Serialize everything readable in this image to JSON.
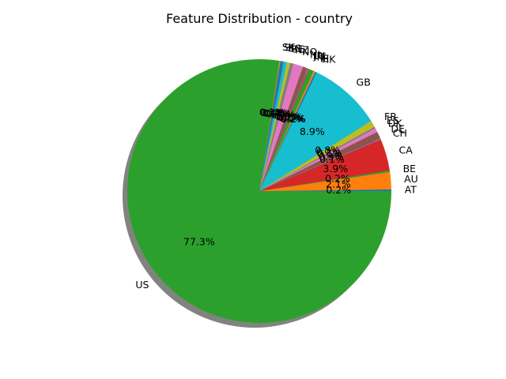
{
  "chart_data": {
    "type": "pie",
    "title": "Feature Distribution - country",
    "shadow": true,
    "start_angle_deg": 0,
    "direction": "counterclockwise",
    "slices": [
      {
        "label": "AT",
        "value": 0.2,
        "pct_text": "0.2%",
        "color": "#1f77b4"
      },
      {
        "label": "AU",
        "value": 2.1,
        "pct_text": "2.1%",
        "color": "#ff7f0e"
      },
      {
        "label": "BE",
        "value": 0.2,
        "pct_text": "0.2%",
        "color": "#2ca02c"
      },
      {
        "label": "CA",
        "value": 3.9,
        "pct_text": "3.9%",
        "color": "#d62728"
      },
      {
        "label": "CH",
        "value": 0.1,
        "pct_text": "0.1%",
        "color": "#9467bd"
      },
      {
        "label": "DE",
        "value": 0.9,
        "pct_text": "0.9%",
        "color": "#8c564b"
      },
      {
        "label": "DK",
        "value": 0.5,
        "pct_text": "0.5%",
        "color": "#e377c2"
      },
      {
        "label": "ES",
        "value": 0.2,
        "pct_text": "0.2%",
        "color": "#7f7f7f"
      },
      {
        "label": "FR",
        "value": 0.8,
        "pct_text": "0.8%",
        "color": "#bcbd22"
      },
      {
        "label": "GB",
        "value": 8.9,
        "pct_text": "8.9%",
        "color": "#17becf"
      },
      {
        "label": "HK",
        "value": 0.2,
        "pct_text": "0.2%",
        "color": "#1f77b4"
      },
      {
        "label": "IE",
        "value": 0.2,
        "pct_text": "0.2%",
        "color": "#ff7f0e"
      },
      {
        "label": "IT",
        "value": 0.6,
        "pct_text": "0.6%",
        "color": "#2ca02c"
      },
      {
        "label": "JP",
        "value": 0.1,
        "pct_text": "0.1%",
        "color": "#d62728"
      },
      {
        "label": "LU",
        "value": 0.1,
        "pct_text": "0.1%",
        "color": "#9467bd"
      },
      {
        "label": "NL",
        "value": 0.6,
        "pct_text": "0.6%",
        "color": "#8c564b"
      },
      {
        "label": "NO",
        "value": 1.2,
        "pct_text": "1.2%",
        "color": "#e377c2"
      },
      {
        "label": "NZ",
        "value": 0.4,
        "pct_text": "0.4%",
        "color": "#7f7f7f"
      },
      {
        "label": "SE",
        "value": 0.4,
        "pct_text": "0.4%",
        "color": "#bcbd22"
      },
      {
        "label": "SG",
        "value": 0.4,
        "pct_text": "0.4%",
        "color": "#17becf"
      },
      {
        "label": "SI",
        "value": 0.4,
        "pct_text": "0.4%",
        "color": "#1f77b4"
      },
      {
        "label": "SK",
        "value": 0.1,
        "pct_text": "0.1%",
        "color": "#ff7f0e"
      },
      {
        "label": "US",
        "value": 77.3,
        "pct_text": "77.3%",
        "color": "#2ca02c"
      }
    ]
  }
}
